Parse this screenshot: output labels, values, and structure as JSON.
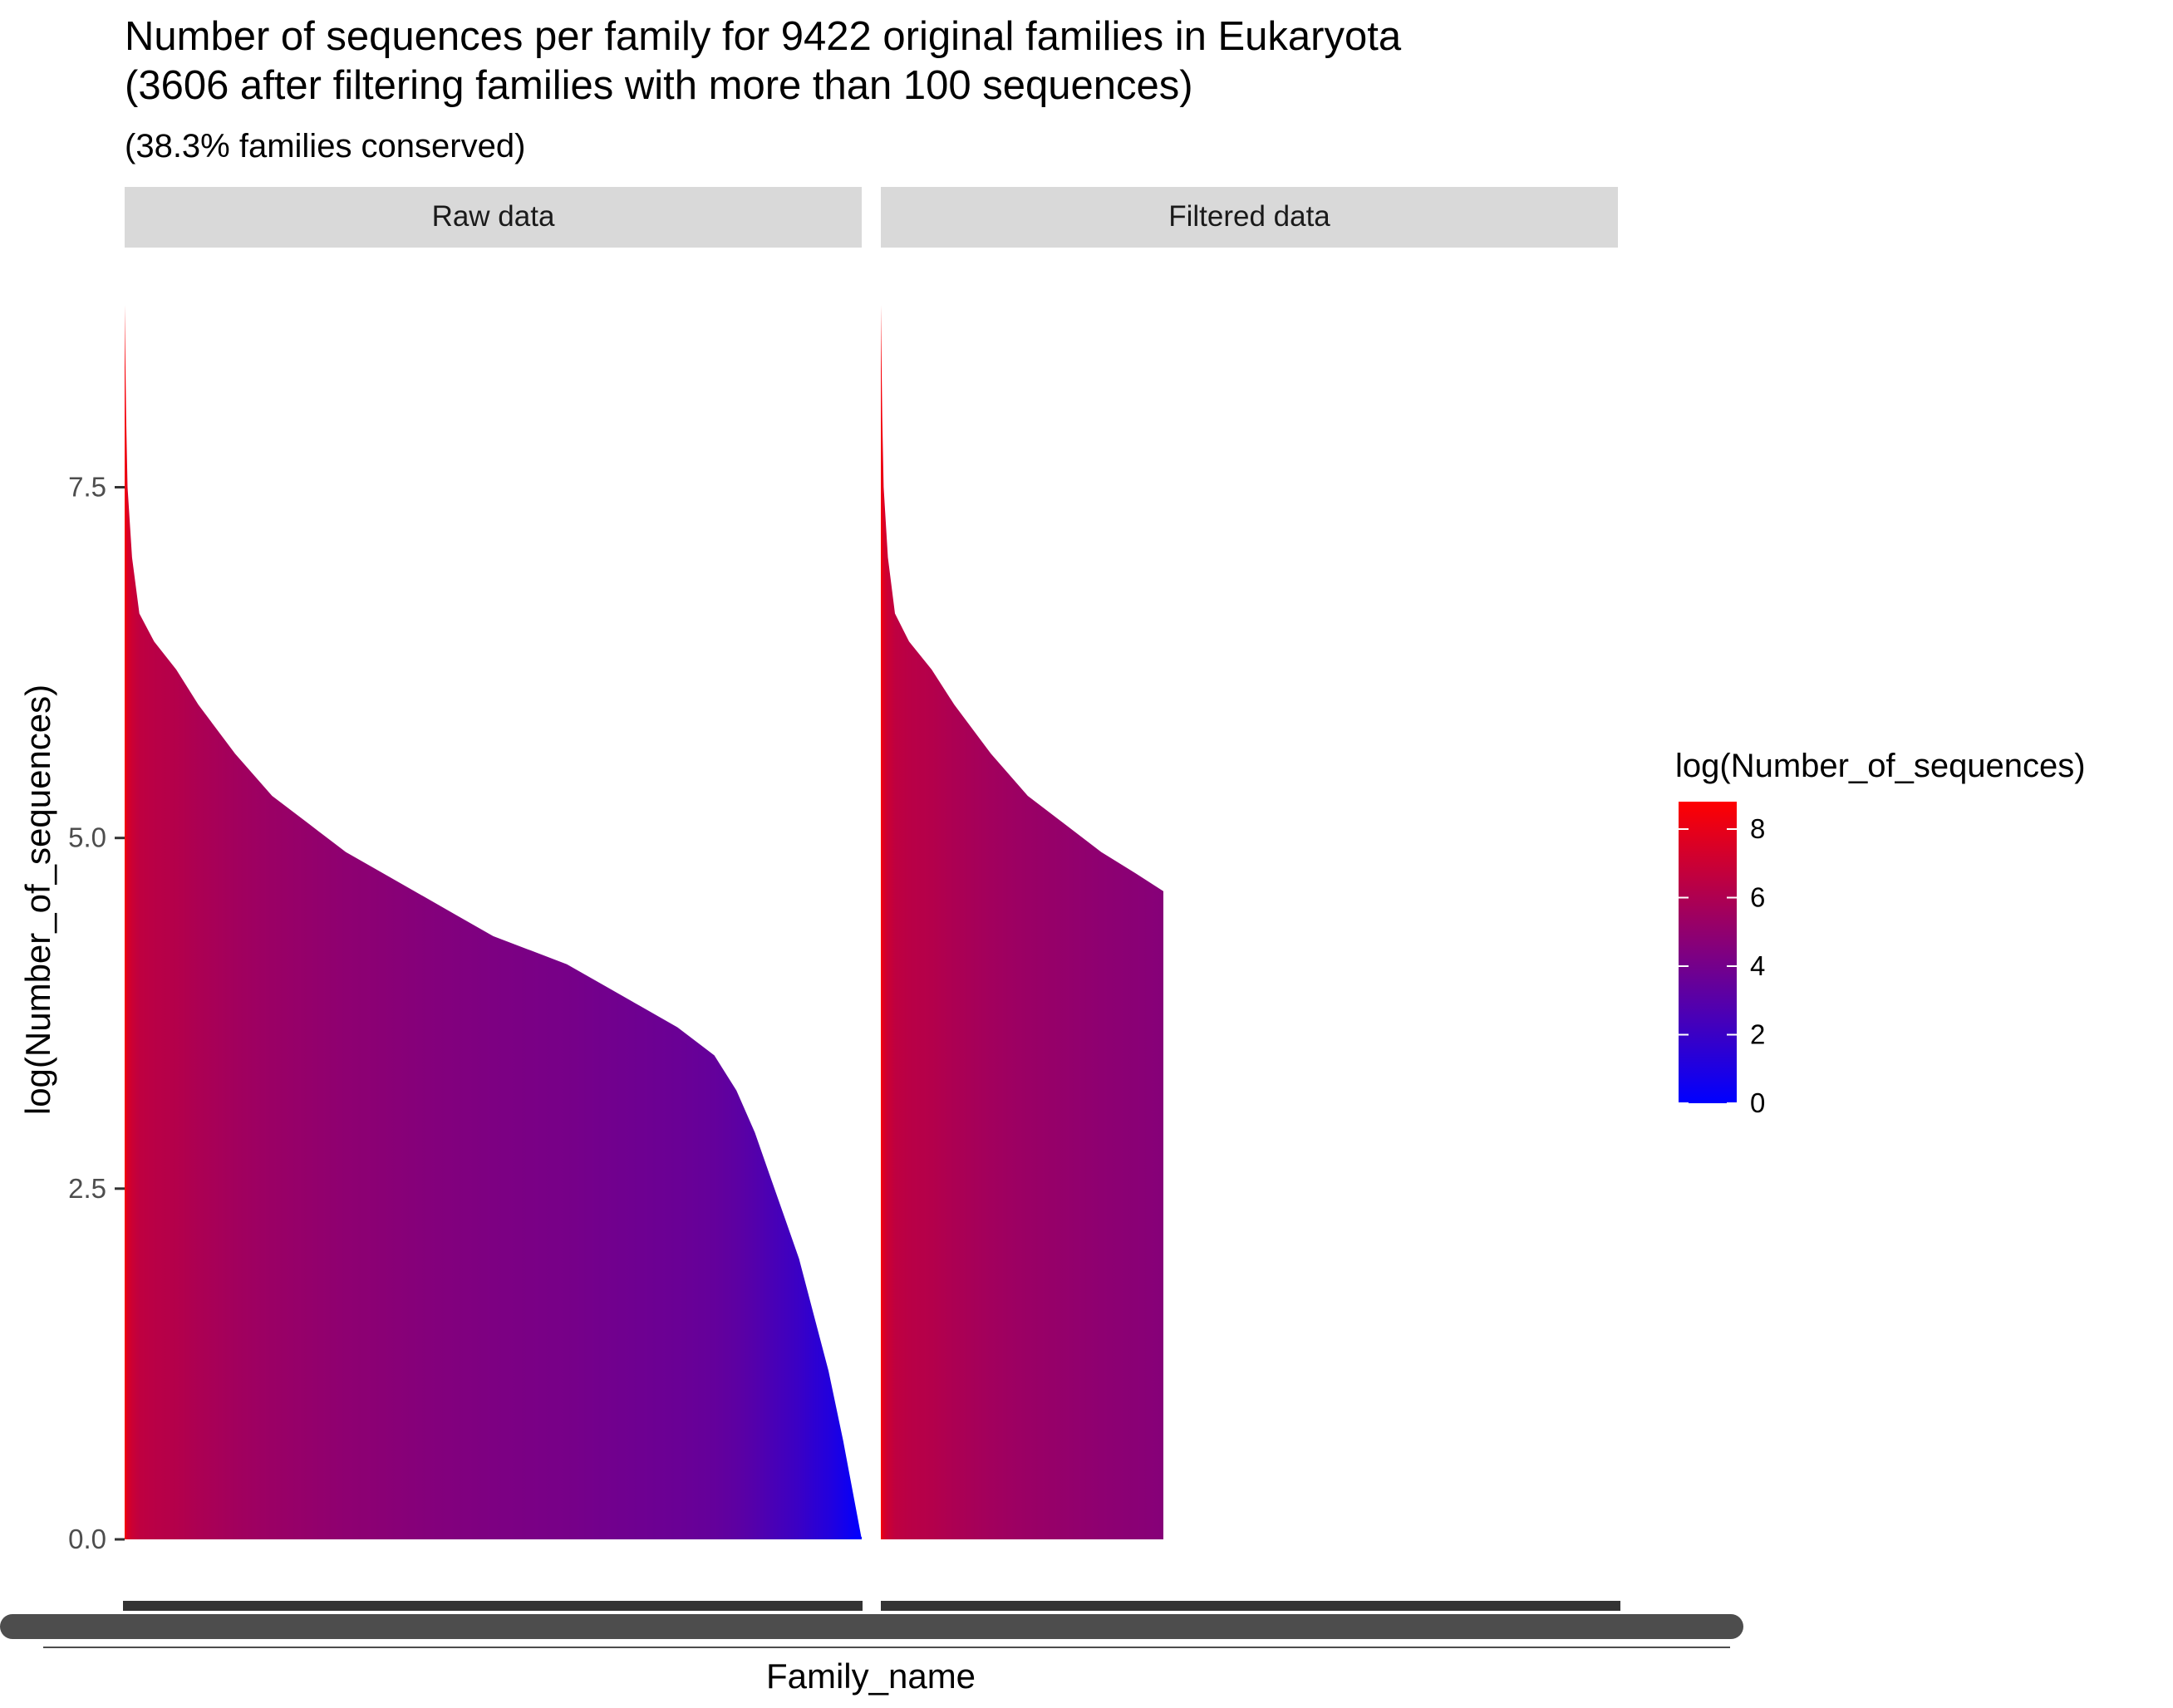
{
  "chart_data": {
    "type": "bar",
    "title_line1": "Number of sequences per family for 9422 original families in Eukaryota",
    "title_line2": "(3606 after filtering families with more than 100 sequences)",
    "subtitle": "(38.3% families conserved)",
    "xlabel": "Family_name",
    "ylabel": "log(Number_of_sequences)",
    "ylim": [
      0,
      8.8
    ],
    "yticks": [
      {
        "value": 0.0,
        "label": "0.0"
      },
      {
        "value": 2.5,
        "label": "2.5"
      },
      {
        "value": 5.0,
        "label": "5.0"
      },
      {
        "value": 7.5,
        "label": "7.5"
      }
    ],
    "grid": false,
    "facets": [
      {
        "label": "Raw data",
        "n_families": 9422,
        "rank_log_profile": [
          [
            0.0,
            8.8
          ],
          [
            0.002,
            8.0
          ],
          [
            0.004,
            7.5
          ],
          [
            0.01,
            7.0
          ],
          [
            0.02,
            6.6
          ],
          [
            0.04,
            6.4
          ],
          [
            0.07,
            6.2
          ],
          [
            0.1,
            5.95
          ],
          [
            0.15,
            5.6
          ],
          [
            0.2,
            5.3
          ],
          [
            0.25,
            5.1
          ],
          [
            0.3,
            4.9
          ],
          [
            0.35,
            4.75
          ],
          [
            0.4,
            4.6
          ],
          [
            0.45,
            4.45
          ],
          [
            0.5,
            4.3
          ],
          [
            0.55,
            4.2
          ],
          [
            0.6,
            4.1
          ],
          [
            0.65,
            3.95
          ],
          [
            0.7,
            3.8
          ],
          [
            0.75,
            3.65
          ],
          [
            0.8,
            3.45
          ],
          [
            0.83,
            3.2
          ],
          [
            0.855,
            2.9
          ],
          [
            0.875,
            2.6
          ],
          [
            0.895,
            2.3
          ],
          [
            0.915,
            2.0
          ],
          [
            0.935,
            1.6
          ],
          [
            0.955,
            1.2
          ],
          [
            0.975,
            0.7
          ],
          [
            1.0,
            0.0
          ]
        ]
      },
      {
        "label": "Filtered data",
        "n_families": 3606,
        "rank_log_profile": [
          [
            0.0,
            8.8
          ],
          [
            0.005,
            8.0
          ],
          [
            0.01,
            7.5
          ],
          [
            0.025,
            7.0
          ],
          [
            0.05,
            6.6
          ],
          [
            0.1,
            6.4
          ],
          [
            0.18,
            6.2
          ],
          [
            0.26,
            5.95
          ],
          [
            0.39,
            5.6
          ],
          [
            0.52,
            5.3
          ],
          [
            0.65,
            5.1
          ],
          [
            0.78,
            4.9
          ],
          [
            0.9,
            4.75
          ],
          [
            1.0,
            4.62
          ]
        ]
      }
    ],
    "legend": {
      "title": "log(Number_of_sequences)",
      "position": "right",
      "range": [
        0,
        8.8
      ],
      "low_color": "#0000FF",
      "high_color": "#FF0000",
      "ticks": [
        {
          "value": 0,
          "label": "0"
        },
        {
          "value": 2,
          "label": "2"
        },
        {
          "value": 4,
          "label": "4"
        },
        {
          "value": 6,
          "label": "6"
        },
        {
          "value": 8,
          "label": "8"
        }
      ]
    }
  },
  "colors": {
    "strip_background": "#D9D9D9",
    "axis_text": "#4D4D4D",
    "x_tick_mark": "#333333"
  }
}
